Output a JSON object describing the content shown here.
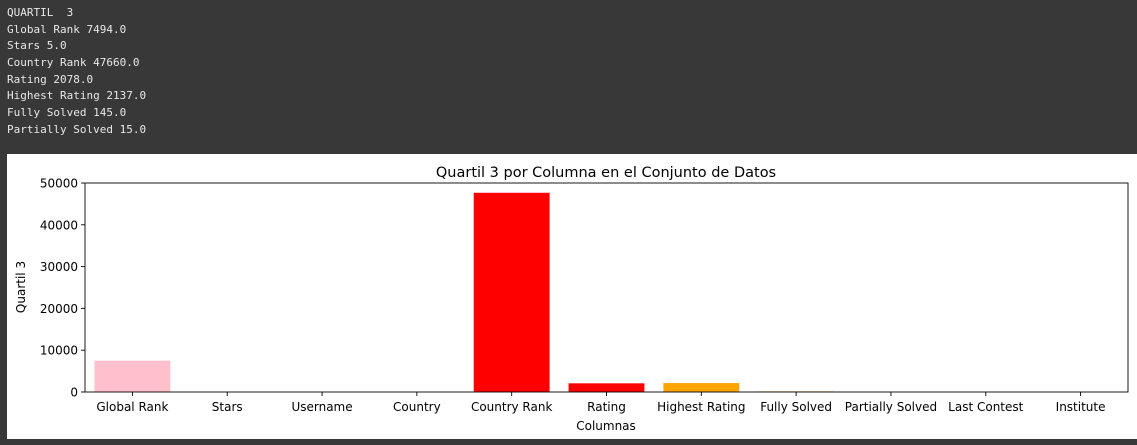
{
  "console": {
    "lines": [
      "QUARTIL  3",
      "Global Rank 7494.0",
      "Stars 5.0",
      "Country Rank 47660.0",
      "Rating 2078.0",
      "Highest Rating 2137.0",
      "Fully Solved 145.0",
      "Partially Solved 15.0"
    ]
  },
  "chart_data": {
    "type": "bar",
    "title": "Quartil 3 por Columna en el Conjunto de Datos",
    "xlabel": "Columnas",
    "ylabel": "Quartil 3",
    "categories": [
      "Global Rank",
      "Stars",
      "Username",
      "Country",
      "Country Rank",
      "Rating",
      "Highest Rating",
      "Fully Solved",
      "Partially Solved",
      "Last Contest",
      "Institute"
    ],
    "values": [
      7494.0,
      5.0,
      0,
      0,
      47660.0,
      2078.0,
      2137.0,
      145.0,
      15.0,
      0,
      0
    ],
    "colors": [
      "#ffc0cb",
      "#ffc0cb",
      "#ffc0cb",
      "#ffc0cb",
      "#ff0000",
      "#ff0000",
      "#ffa500",
      "#ffa500",
      "#ffa500",
      "#ffa500",
      "#ffa500"
    ],
    "ylim": [
      0,
      50000
    ],
    "yticks": [
      0,
      10000,
      20000,
      30000,
      40000,
      50000
    ],
    "grid": false,
    "legend": "none"
  }
}
